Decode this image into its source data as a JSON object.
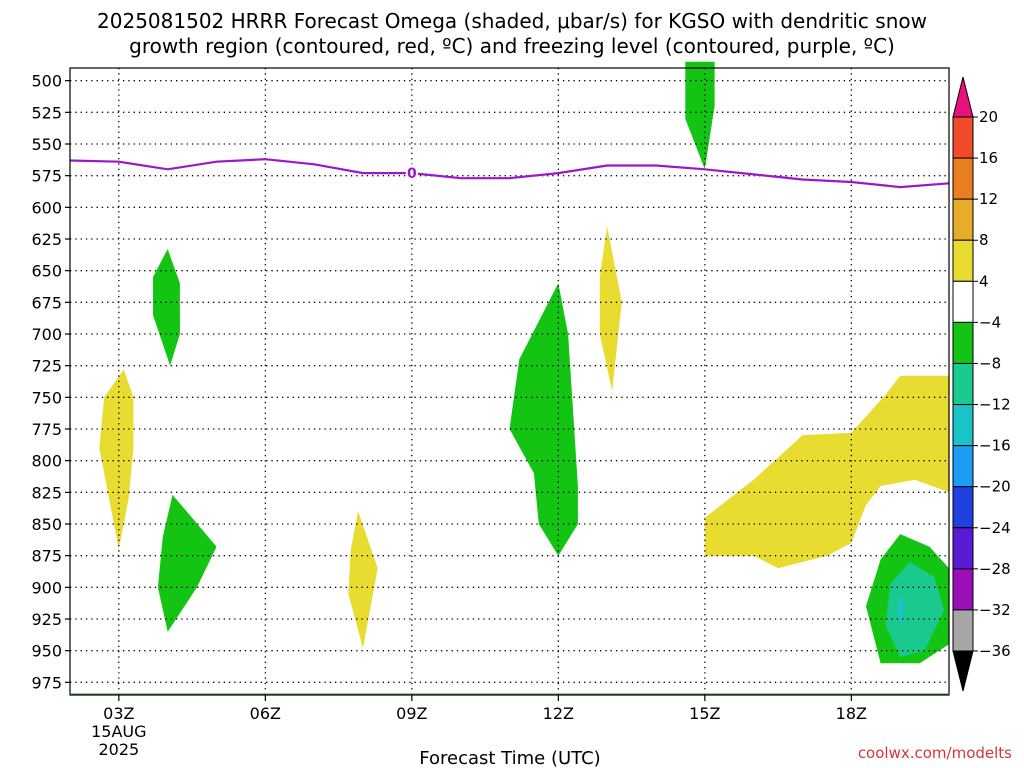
{
  "chart_data": {
    "type": "contour",
    "title_line1": "2025081502 HRRR Forecast Omega (shaded, μbar/s) for KGSO with dendritic snow",
    "title_line2": "growth region (contoured, red, ºC) and freezing level (contoured, purple, ºC)",
    "xlabel": "Forecast Time (UTC)",
    "credit": "coolwx.com/modelts",
    "y_axis": {
      "unit": "hPa",
      "inverted": true,
      "range": [
        490,
        985
      ],
      "ticks": [
        500,
        525,
        550,
        575,
        600,
        625,
        650,
        675,
        700,
        725,
        750,
        775,
        800,
        825,
        850,
        875,
        900,
        925,
        950,
        975
      ]
    },
    "x_axis": {
      "unit": "hours UTC",
      "range": [
        2,
        20
      ],
      "ticks": [
        {
          "x": 3,
          "label": "03Z",
          "sub": [
            "15AUG",
            "2025"
          ]
        },
        {
          "x": 6,
          "label": "06Z",
          "sub": []
        },
        {
          "x": 9,
          "label": "09Z",
          "sub": []
        },
        {
          "x": 12,
          "label": "12Z",
          "sub": []
        },
        {
          "x": 15,
          "label": "15Z",
          "sub": []
        },
        {
          "x": 18,
          "label": "18Z",
          "sub": []
        }
      ]
    },
    "grid": true,
    "colorbar": {
      "levels": [
        -36,
        -32,
        -28,
        -24,
        -20,
        -16,
        -12,
        -8,
        -4,
        4,
        8,
        12,
        16,
        20
      ],
      "colors": [
        "#000000",
        "#a6a6a6",
        "#9b0fb8",
        "#5a1bd4",
        "#2041e0",
        "#1c9cf4",
        "#19c3c7",
        "#19c98d",
        "#13c413",
        "#ffffff",
        "#e8dc31",
        "#e6ad2a",
        "#ea7f22",
        "#f24b2b",
        "#e8127c"
      ]
    },
    "freezing_level": {
      "color": "#9b18c8",
      "label": "0",
      "label_at": 9,
      "points": [
        [
          2.0,
          563
        ],
        [
          3.0,
          564
        ],
        [
          4.0,
          570
        ],
        [
          5.0,
          564
        ],
        [
          6.0,
          562
        ],
        [
          7.0,
          566
        ],
        [
          8.0,
          573
        ],
        [
          9.0,
          573
        ],
        [
          10.0,
          577
        ],
        [
          11.0,
          577
        ],
        [
          12.0,
          573
        ],
        [
          13.0,
          567
        ],
        [
          14.0,
          567
        ],
        [
          15.0,
          570
        ],
        [
          16.0,
          574
        ],
        [
          17.0,
          578
        ],
        [
          18.0,
          580
        ],
        [
          19.0,
          584
        ],
        [
          20.0,
          581
        ]
      ]
    },
    "terrain_top_hpa": 985,
    "omega_regions": [
      {
        "value_range": [
          4,
          8
        ],
        "color": "#e8dc31",
        "points": [
          [
            3.1,
            728
          ],
          [
            3.3,
            750
          ],
          [
            3.3,
            790
          ],
          [
            3.2,
            830
          ],
          [
            3.0,
            870
          ],
          [
            2.8,
            830
          ],
          [
            2.6,
            790
          ],
          [
            2.7,
            750
          ]
        ]
      },
      {
        "value_range": [
          -8,
          -4
        ],
        "color": "#13c413",
        "points": [
          [
            4.0,
            633
          ],
          [
            4.25,
            660
          ],
          [
            4.25,
            700
          ],
          [
            4.05,
            725
          ],
          [
            3.7,
            685
          ],
          [
            3.7,
            655
          ]
        ]
      },
      {
        "value_range": [
          -8,
          -4
        ],
        "color": "#13c413",
        "points": [
          [
            4.1,
            827
          ],
          [
            4.5,
            845
          ],
          [
            5.0,
            868
          ],
          [
            4.6,
            900
          ],
          [
            4.0,
            935
          ],
          [
            3.8,
            900
          ],
          [
            3.9,
            860
          ]
        ]
      },
      {
        "value_range": [
          4,
          8
        ],
        "color": "#e8dc31",
        "points": [
          [
            7.9,
            840
          ],
          [
            8.3,
            885
          ],
          [
            8.0,
            948
          ],
          [
            7.7,
            905
          ],
          [
            7.75,
            870
          ]
        ]
      },
      {
        "value_range": [
          -8,
          -4
        ],
        "color": "#13c413",
        "points": [
          [
            12.0,
            660
          ],
          [
            12.2,
            700
          ],
          [
            12.4,
            820
          ],
          [
            12.4,
            850
          ],
          [
            12.0,
            875
          ],
          [
            11.6,
            850
          ],
          [
            11.5,
            810
          ],
          [
            11.0,
            775
          ],
          [
            11.2,
            720
          ]
        ]
      },
      {
        "value_range": [
          4,
          8
        ],
        "color": "#e8dc31",
        "points": [
          [
            13.0,
            615
          ],
          [
            13.3,
            675
          ],
          [
            13.1,
            745
          ],
          [
            12.85,
            700
          ],
          [
            12.85,
            655
          ]
        ]
      },
      {
        "value_range": [
          -8,
          -4
        ],
        "color": "#13c413",
        "points": [
          [
            14.6,
            485
          ],
          [
            15.2,
            485
          ],
          [
            15.2,
            520
          ],
          [
            15.0,
            570
          ],
          [
            14.6,
            530
          ]
        ]
      },
      {
        "value_range": [
          4,
          8
        ],
        "color": "#e8dc31",
        "points": [
          [
            15.0,
            845
          ],
          [
            16.0,
            815
          ],
          [
            17.0,
            780
          ],
          [
            18.0,
            778
          ],
          [
            18.7,
            748
          ],
          [
            19.0,
            733
          ],
          [
            20.0,
            733
          ],
          [
            20.0,
            825
          ],
          [
            19.3,
            815
          ],
          [
            18.6,
            820
          ],
          [
            18.3,
            835
          ],
          [
            18.0,
            865
          ],
          [
            17.5,
            875
          ],
          [
            16.5,
            885
          ],
          [
            16.0,
            875
          ],
          [
            15.0,
            875
          ]
        ]
      },
      {
        "value_range": [
          -8,
          -4
        ],
        "color": "#13c413",
        "points": [
          [
            19.0,
            858
          ],
          [
            19.6,
            868
          ],
          [
            20.0,
            885
          ],
          [
            20.0,
            945
          ],
          [
            19.4,
            960
          ],
          [
            18.6,
            960
          ],
          [
            18.3,
            915
          ],
          [
            18.6,
            878
          ]
        ]
      },
      {
        "value_range": [
          -12,
          -8
        ],
        "color": "#19c98d",
        "points": [
          [
            19.2,
            880
          ],
          [
            19.7,
            892
          ],
          [
            19.9,
            918
          ],
          [
            19.5,
            950
          ],
          [
            19.0,
            955
          ],
          [
            18.7,
            930
          ],
          [
            18.8,
            897
          ]
        ]
      },
      {
        "value_range": [
          -16,
          -12
        ],
        "color": "#19c3c7",
        "points": [
          [
            19.0,
            905
          ],
          [
            19.1,
            915
          ],
          [
            19.0,
            932
          ],
          [
            18.95,
            916
          ]
        ]
      }
    ]
  }
}
